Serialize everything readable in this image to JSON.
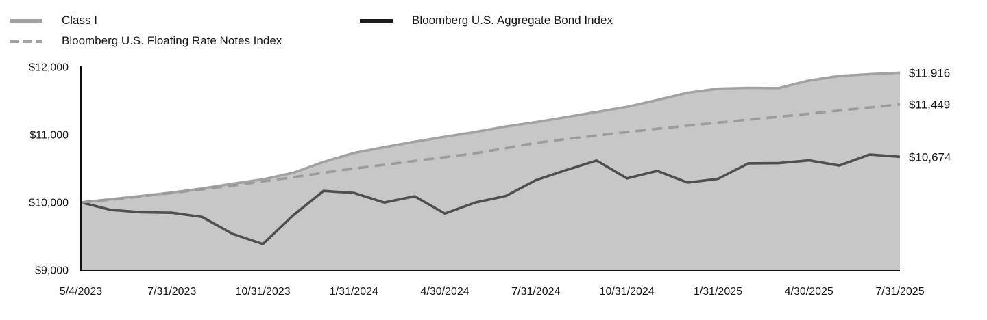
{
  "legend": {
    "class_i_label": "Class I",
    "floating_label": "Bloomberg U.S. Floating Rate Notes Index",
    "aggregate_label": "Bloomberg U.S. Aggregate Bond Index"
  },
  "chart_data": {
    "type": "area",
    "title": "",
    "xlabel": "",
    "ylabel": "",
    "ylim": [
      9000,
      12000
    ],
    "grid": false,
    "legend_position": "top",
    "x": [
      "5/4/2023",
      "5/31/2023",
      "6/30/2023",
      "7/31/2023",
      "8/31/2023",
      "9/30/2023",
      "10/31/2023",
      "11/30/2023",
      "12/31/2023",
      "1/31/2024",
      "2/29/2024",
      "3/31/2024",
      "4/30/2024",
      "5/31/2024",
      "6/30/2024",
      "7/31/2024",
      "8/31/2024",
      "9/30/2024",
      "10/31/2024",
      "11/30/2024",
      "12/31/2024",
      "1/31/2025",
      "2/28/2025",
      "3/31/2025",
      "4/30/2025",
      "5/31/2025",
      "6/30/2025",
      "7/31/2025"
    ],
    "x_tick_indices": [
      0,
      3,
      6,
      9,
      12,
      15,
      18,
      21,
      24,
      27
    ],
    "x_tick_labels": [
      "5/4/2023",
      "7/31/2023",
      "10/31/2023",
      "1/31/2024",
      "4/30/2024",
      "7/31/2024",
      "10/31/2024",
      "1/31/2025",
      "4/30/2025",
      "7/31/2025"
    ],
    "y_ticks": [
      {
        "value": 12000,
        "label": "$12,000"
      },
      {
        "value": 11000,
        "label": "$11,000"
      },
      {
        "value": 10000,
        "label": "$10,000"
      },
      {
        "value": 9000,
        "label": "$9,000"
      }
    ],
    "series": [
      {
        "name": "Class I",
        "style": "area",
        "line_color": "#a2a2a2",
        "fill_color": "#c7c7c7",
        "end_label": "$11,916",
        "end_value": 11916,
        "values": [
          10000,
          10048,
          10096,
          10146,
          10206,
          10276,
          10340,
          10438,
          10598,
          10730,
          10815,
          10896,
          10970,
          11040,
          11120,
          11185,
          11260,
          11335,
          11412,
          11512,
          11620,
          11680,
          11692,
          11688,
          11800,
          11868,
          11894,
          11916
        ]
      },
      {
        "name": "Bloomberg U.S. Floating Rate Notes Index",
        "style": "dashed",
        "line_color": "#9b9b9b",
        "end_label": "$11,449",
        "end_value": 11449,
        "values": [
          10000,
          10040,
          10088,
          10140,
          10192,
          10248,
          10310,
          10372,
          10438,
          10500,
          10556,
          10612,
          10668,
          10725,
          10800,
          10880,
          10935,
          10988,
          11038,
          11088,
          11133,
          11178,
          11222,
          11265,
          11310,
          11357,
          11403,
          11449
        ]
      },
      {
        "name": "Bloomberg U.S. Aggregate Bond Index",
        "style": "solid",
        "line_color": "#4f4f4f",
        "legend_color": "#1c1c1c",
        "end_label": "$10,674",
        "end_value": 10674,
        "values": [
          10000,
          9888,
          9854,
          9847,
          9784,
          9535,
          9385,
          9810,
          10170,
          10140,
          9998,
          10090,
          9835,
          9998,
          10093,
          10329,
          10478,
          10618,
          10355,
          10465,
          10293,
          10348,
          10576,
          10580,
          10621,
          10545,
          10707,
          10674
        ]
      }
    ]
  }
}
